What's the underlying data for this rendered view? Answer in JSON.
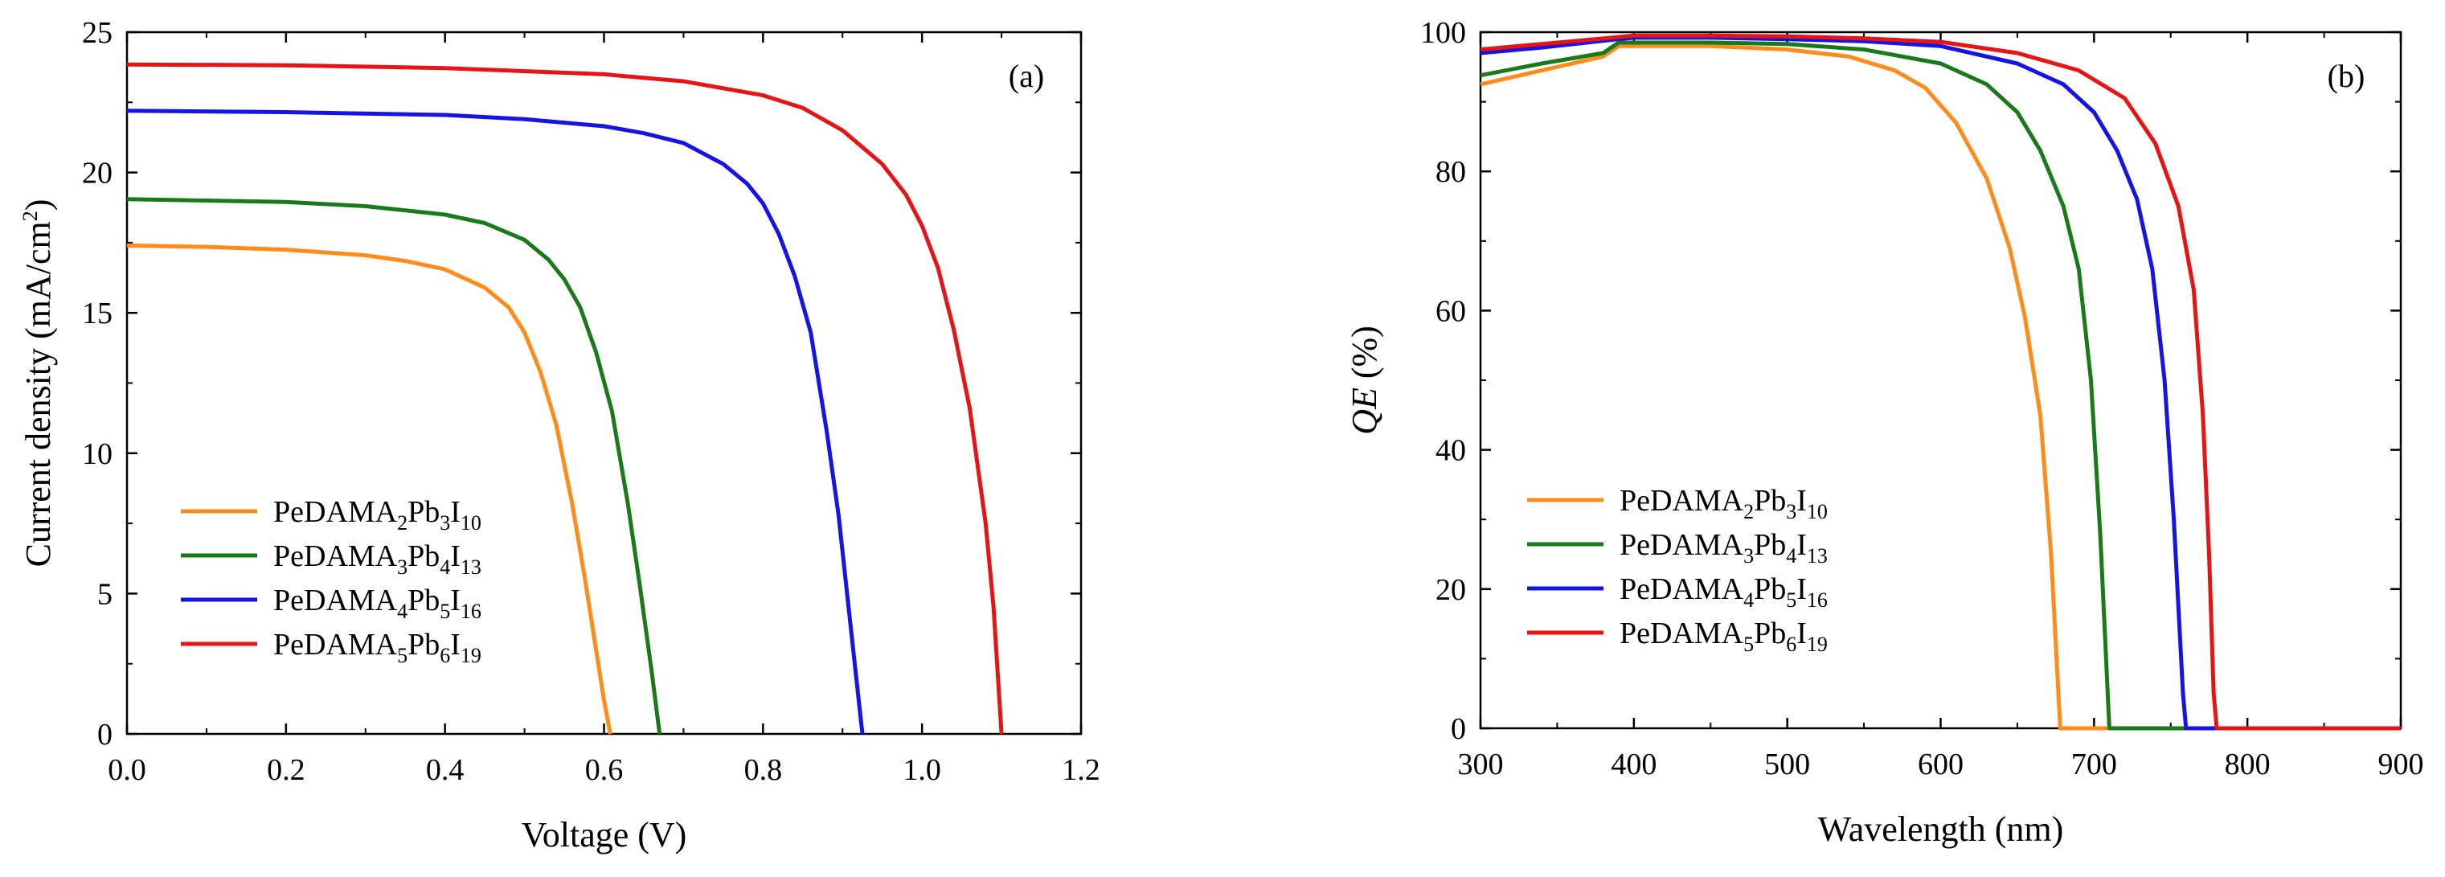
{
  "chart_data": [
    {
      "type": "line",
      "panel_label": "(a)",
      "xlabel": "Voltage (V)",
      "ylabel_main": "Current density (mA/cm",
      "ylabel_sup": "2",
      "ylabel_end": ")",
      "xlim": [
        0.0,
        1.2
      ],
      "ylim": [
        0,
        25
      ],
      "xticks": [
        "0.0",
        "0.2",
        "0.4",
        "0.6",
        "0.8",
        "1.0",
        "1.2"
      ],
      "yticks": [
        "0",
        "5",
        "10",
        "15",
        "20",
        "25"
      ],
      "legend_position": "bottom-left",
      "series": [
        {
          "name": "PeDAMA2Pb3I10",
          "label_parts": [
            "PeDAMA",
            "2",
            "Pb",
            "3",
            "I",
            "10"
          ],
          "color": "#ff8c1a",
          "x": [
            0.0,
            0.1,
            0.2,
            0.3,
            0.35,
            0.4,
            0.45,
            0.48,
            0.5,
            0.52,
            0.54,
            0.56,
            0.575,
            0.59,
            0.6,
            0.608
          ],
          "y": [
            17.4,
            17.35,
            17.25,
            17.05,
            16.85,
            16.55,
            15.9,
            15.2,
            14.3,
            12.9,
            11.0,
            8.2,
            5.7,
            3.0,
            1.2,
            0.0
          ]
        },
        {
          "name": "PeDAMA3Pb4I13",
          "label_parts": [
            "PeDAMA",
            "3",
            "Pb",
            "4",
            "I",
            "13"
          ],
          "color": "#1a7a1a",
          "x": [
            0.0,
            0.1,
            0.2,
            0.3,
            0.4,
            0.45,
            0.5,
            0.53,
            0.55,
            0.57,
            0.59,
            0.61,
            0.63,
            0.645,
            0.66,
            0.67
          ],
          "y": [
            19.05,
            19.0,
            18.95,
            18.8,
            18.5,
            18.2,
            17.6,
            16.9,
            16.2,
            15.2,
            13.6,
            11.5,
            8.2,
            5.3,
            2.2,
            0.0
          ]
        },
        {
          "name": "PeDAMA4Pb5I16",
          "label_parts": [
            "PeDAMA",
            "4",
            "Pb",
            "5",
            "I",
            "16"
          ],
          "color": "#1414e6",
          "x": [
            0.0,
            0.2,
            0.4,
            0.5,
            0.6,
            0.65,
            0.7,
            0.75,
            0.78,
            0.8,
            0.82,
            0.84,
            0.86,
            0.88,
            0.895,
            0.91,
            0.925
          ],
          "y": [
            22.2,
            22.15,
            22.05,
            21.9,
            21.65,
            21.4,
            21.05,
            20.3,
            19.6,
            18.9,
            17.8,
            16.3,
            14.3,
            10.8,
            7.8,
            3.9,
            0.0
          ]
        },
        {
          "name": "PeDAMA5Pb6I19",
          "label_parts": [
            "PeDAMA",
            "5",
            "Pb",
            "6",
            "I",
            "19"
          ],
          "color": "#e61414",
          "x": [
            0.0,
            0.2,
            0.4,
            0.6,
            0.7,
            0.8,
            0.85,
            0.9,
            0.95,
            0.98,
            1.0,
            1.02,
            1.04,
            1.06,
            1.08,
            1.09,
            1.1
          ],
          "y": [
            23.85,
            23.82,
            23.72,
            23.5,
            23.25,
            22.75,
            22.3,
            21.5,
            20.3,
            19.2,
            18.1,
            16.6,
            14.4,
            11.6,
            7.5,
            4.5,
            0.0
          ]
        }
      ]
    },
    {
      "type": "line",
      "panel_label": "(b)",
      "xlabel": "Wavelength (nm)",
      "ylabel_main": "QE",
      "ylabel_end": " (%)",
      "xlim": [
        300,
        900
      ],
      "ylim": [
        0,
        100
      ],
      "xticks": [
        "300",
        "400",
        "500",
        "600",
        "700",
        "800",
        "900"
      ],
      "yticks": [
        "0",
        "20",
        "40",
        "60",
        "80",
        "100"
      ],
      "legend_position": "bottom-left",
      "series": [
        {
          "name": "PeDAMA2Pb3I10",
          "label_parts": [
            "PeDAMA",
            "2",
            "Pb",
            "3",
            "I",
            "10"
          ],
          "color": "#ff8c1a",
          "x": [
            300,
            340,
            380,
            390,
            400,
            450,
            500,
            540,
            570,
            590,
            610,
            630,
            645,
            655,
            665,
            672,
            678,
            680,
            900
          ],
          "y": [
            92.5,
            94.5,
            96.5,
            98,
            98,
            98,
            97.5,
            96.5,
            94.5,
            92,
            87,
            79,
            69,
            59,
            45,
            25,
            0,
            0,
            0
          ]
        },
        {
          "name": "PeDAMA3Pb4I13",
          "label_parts": [
            "PeDAMA",
            "3",
            "Pb",
            "4",
            "I",
            "13"
          ],
          "color": "#1a7a1a",
          "x": [
            300,
            340,
            380,
            390,
            400,
            450,
            500,
            550,
            600,
            630,
            650,
            665,
            680,
            690,
            698,
            704,
            710,
            900
          ],
          "y": [
            93.8,
            95.5,
            97,
            98.5,
            98.5,
            98.5,
            98.3,
            97.5,
            95.5,
            92.5,
            88.5,
            83,
            75,
            66,
            50,
            28,
            0,
            0
          ]
        },
        {
          "name": "PeDAMA4Pb5I16",
          "label_parts": [
            "PeDAMA",
            "4",
            "Pb",
            "5",
            "I",
            "16"
          ],
          "color": "#1414e6",
          "x": [
            300,
            340,
            390,
            400,
            450,
            500,
            550,
            600,
            650,
            680,
            700,
            715,
            728,
            738,
            746,
            752,
            758,
            760,
            900
          ],
          "y": [
            97,
            97.8,
            99,
            99.2,
            99.2,
            99,
            98.7,
            98,
            95.5,
            92.5,
            88.5,
            83,
            76,
            66,
            50,
            30,
            5,
            0,
            0
          ]
        },
        {
          "name": "PeDAMA5Pb6I19",
          "label_parts": [
            "PeDAMA",
            "5",
            "Pb",
            "6",
            "I",
            "19"
          ],
          "color": "#e61414",
          "x": [
            300,
            340,
            390,
            400,
            450,
            500,
            550,
            600,
            650,
            690,
            720,
            740,
            755,
            765,
            771,
            775,
            778,
            780,
            900
          ],
          "y": [
            97.5,
            98.3,
            99.3,
            99.5,
            99.5,
            99.4,
            99.1,
            98.6,
            97,
            94.5,
            90.5,
            84,
            75,
            63,
            45,
            25,
            5,
            0,
            0
          ]
        }
      ]
    }
  ]
}
